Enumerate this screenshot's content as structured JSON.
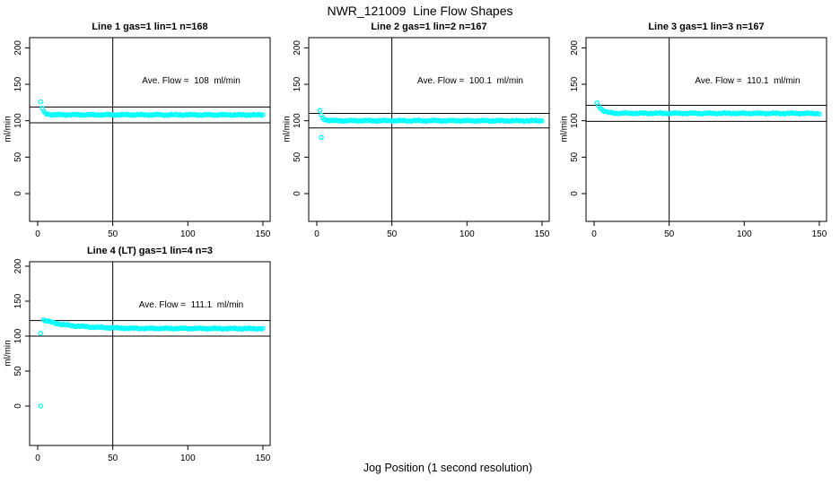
{
  "page": {
    "title": "NWR_121009  Line Flow Shapes",
    "xlabel": "Jog Position (1 second resolution)"
  },
  "colors": {
    "points": "#00ffff",
    "reference_lines": "#000000",
    "background": "#ffffff"
  },
  "chart_data": [
    {
      "type": "scatter",
      "title": "Line 1 gas=1 lin=1 n=168",
      "n": 168,
      "annotation": "Ave. Flow =  108  ml/min",
      "ave_flow": 108,
      "ylabel": "ml/min",
      "x_ticks": [
        0,
        50,
        100,
        150
      ],
      "y_ticks": [
        0,
        50,
        100,
        150,
        200
      ],
      "xlim": [
        -5,
        155
      ],
      "ylim": [
        -40,
        213
      ],
      "marker": {
        "shape": "open-circle",
        "color": "#00ffff"
      },
      "reference_lines": {
        "horizontal": [
          118.8,
          97.2
        ],
        "vertical": [
          50
        ]
      },
      "points_profile": [
        [
          2,
          126
        ],
        [
          3,
          117
        ],
        [
          4,
          112
        ],
        [
          6,
          109.5
        ],
        [
          10,
          108.2
        ],
        [
          150,
          108
        ]
      ],
      "outliers": []
    },
    {
      "type": "scatter",
      "title": "Line 2 gas=1 lin=2 n=167",
      "n": 167,
      "annotation": "Ave. Flow =  100.1  ml/min",
      "ave_flow": 100.1,
      "ylabel": "ml/min",
      "x_ticks": [
        0,
        50,
        100,
        150
      ],
      "y_ticks": [
        0,
        50,
        100,
        150,
        200
      ],
      "xlim": [
        -5,
        155
      ],
      "ylim": [
        -40,
        213
      ],
      "marker": {
        "shape": "open-circle",
        "color": "#00ffff"
      },
      "reference_lines": {
        "horizontal": [
          110.1,
          90.1
        ],
        "vertical": [
          50
        ]
      },
      "points_profile": [
        [
          2,
          114
        ],
        [
          3,
          107
        ],
        [
          5,
          102
        ],
        [
          8,
          100.5
        ],
        [
          12,
          100.1
        ],
        [
          150,
          100
        ]
      ],
      "outliers": [
        [
          3,
          77
        ]
      ]
    },
    {
      "type": "scatter",
      "title": "Line 3 gas=1 lin=3 n=167",
      "n": 167,
      "annotation": "Ave. Flow =  110.1  ml/min",
      "ave_flow": 110.1,
      "ylabel": "ml/min",
      "x_ticks": [
        0,
        50,
        100,
        150
      ],
      "y_ticks": [
        0,
        50,
        100,
        150,
        200
      ],
      "xlim": [
        -5,
        155
      ],
      "ylim": [
        -40,
        213
      ],
      "marker": {
        "shape": "open-circle",
        "color": "#00ffff"
      },
      "reference_lines": {
        "horizontal": [
          121.1,
          99.1
        ],
        "vertical": [
          50
        ]
      },
      "points_profile": [
        [
          2,
          124
        ],
        [
          4,
          118
        ],
        [
          6,
          114
        ],
        [
          9,
          111.5
        ],
        [
          14,
          110.3
        ],
        [
          150,
          110
        ]
      ],
      "outliers": []
    },
    {
      "type": "scatter",
      "title": "Line 4 (LT) gas=1 lin=4 n=3",
      "n": 3,
      "annotation": "Ave. Flow =  111.1  ml/min",
      "ave_flow": 111.1,
      "ylabel": "ml/min",
      "x_ticks": [
        0,
        50,
        100,
        150
      ],
      "y_ticks": [
        0,
        50,
        100,
        150,
        200
      ],
      "xlim": [
        -5,
        155
      ],
      "ylim": [
        -40,
        213
      ],
      "marker": {
        "shape": "open-circle",
        "color": "#00ffff"
      },
      "reference_lines": {
        "horizontal": [
          122.2,
          100.0
        ],
        "vertical": [
          50
        ]
      },
      "points_profile": [
        [
          4,
          123
        ],
        [
          8,
          120.5
        ],
        [
          15,
          117
        ],
        [
          25,
          114.5
        ],
        [
          40,
          112.5
        ],
        [
          55,
          111.5
        ],
        [
          70,
          111
        ],
        [
          150,
          110.7
        ]
      ],
      "outliers": [
        [
          2,
          0
        ],
        [
          2,
          104
        ]
      ]
    }
  ]
}
